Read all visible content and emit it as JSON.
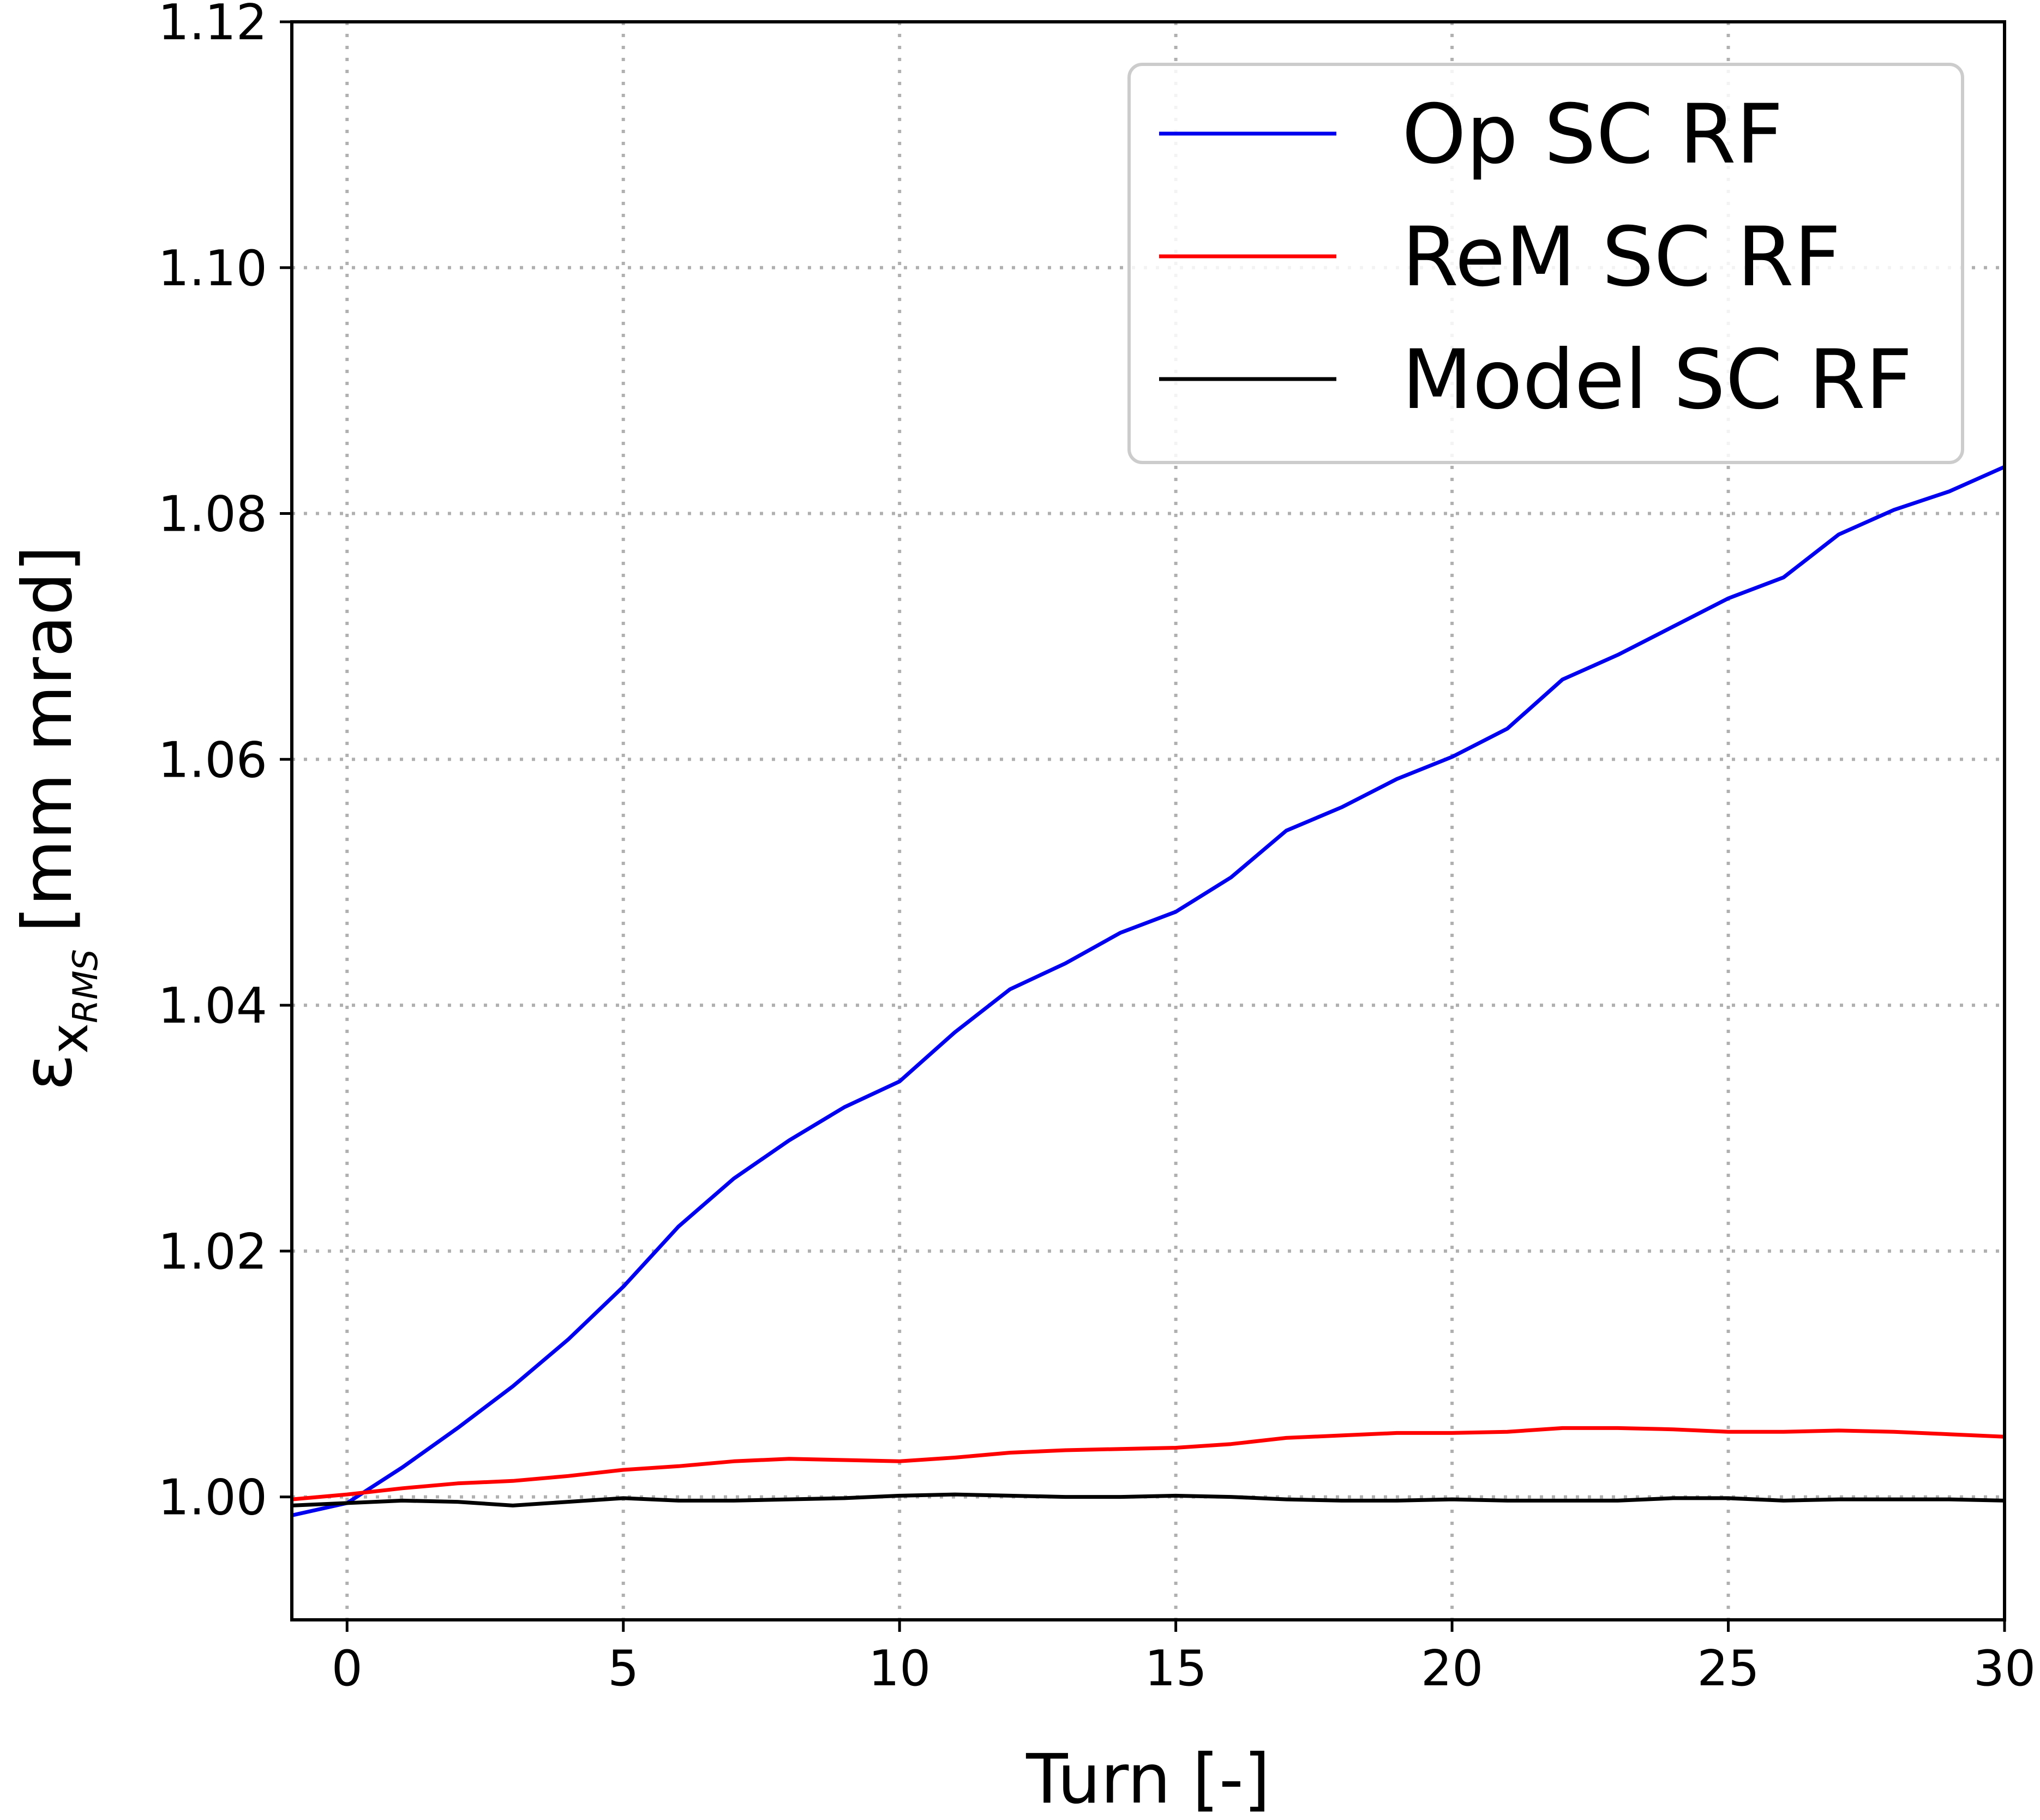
{
  "chart_data": {
    "type": "line",
    "xlabel": "Turn [-]",
    "ylabel": {
      "symbol": "ε",
      "subscript": "x",
      "subsubscript": "RMS",
      "unit": "[mm mrad]"
    },
    "xlim": [
      -1,
      30
    ],
    "ylim": [
      0.99,
      1.12
    ],
    "xticks": [
      0,
      5,
      10,
      15,
      20,
      25,
      30
    ],
    "xtick_labels": [
      "0",
      "5",
      "10",
      "15",
      "20",
      "25",
      "30"
    ],
    "yticks": [
      1.0,
      1.02,
      1.04,
      1.06,
      1.08,
      1.1,
      1.12
    ],
    "ytick_labels": [
      "1.00",
      "1.02",
      "1.04",
      "1.06",
      "1.08",
      "1.10",
      "1.12"
    ],
    "grid": true,
    "legend_position": "top-right",
    "x": [
      -1,
      0,
      1,
      2,
      3,
      4,
      5,
      6,
      7,
      8,
      9,
      10,
      11,
      12,
      13,
      14,
      15,
      16,
      17,
      18,
      19,
      20,
      21,
      22,
      23,
      24,
      25,
      26,
      27,
      28,
      29,
      30
    ],
    "series": [
      {
        "name": "Op SC RF",
        "color": "#0000ee",
        "values": [
          0.9985,
          0.9995,
          1.0024,
          1.0056,
          1.009,
          1.0128,
          1.0171,
          1.022,
          1.0259,
          1.029,
          1.0317,
          1.0338,
          1.0378,
          1.0413,
          1.0434,
          1.0459,
          1.0476,
          1.0504,
          1.0542,
          1.0561,
          1.0584,
          1.0602,
          1.0625,
          1.0665,
          1.0685,
          1.0708,
          1.0731,
          1.0748,
          1.0783,
          1.0803,
          1.0818,
          1.0838
        ]
      },
      {
        "name": "ReM SC RF",
        "color": "#ff0000",
        "values": [
          0.9998,
          1.0002,
          1.0007,
          1.0011,
          1.0013,
          1.0017,
          1.0022,
          1.0025,
          1.0029,
          1.0031,
          1.003,
          1.0029,
          1.0032,
          1.0036,
          1.0038,
          1.0039,
          1.004,
          1.0043,
          1.0048,
          1.005,
          1.0052,
          1.0052,
          1.0053,
          1.0056,
          1.0056,
          1.0055,
          1.0053,
          1.0053,
          1.0054,
          1.0053,
          1.0051,
          1.0049
        ]
      },
      {
        "name": "Model SC RF",
        "color": "#000000",
        "values": [
          0.9993,
          0.9995,
          0.9997,
          0.9996,
          0.9993,
          0.9996,
          0.9999,
          0.9997,
          0.9997,
          0.9998,
          0.9999,
          1.0001,
          1.0002,
          1.0001,
          1.0,
          1.0,
          1.0001,
          1.0,
          0.9998,
          0.9997,
          0.9997,
          0.9998,
          0.9997,
          0.9997,
          0.9997,
          0.9999,
          0.9999,
          0.9997,
          0.9998,
          0.9998,
          0.9998,
          0.9997
        ]
      }
    ]
  }
}
